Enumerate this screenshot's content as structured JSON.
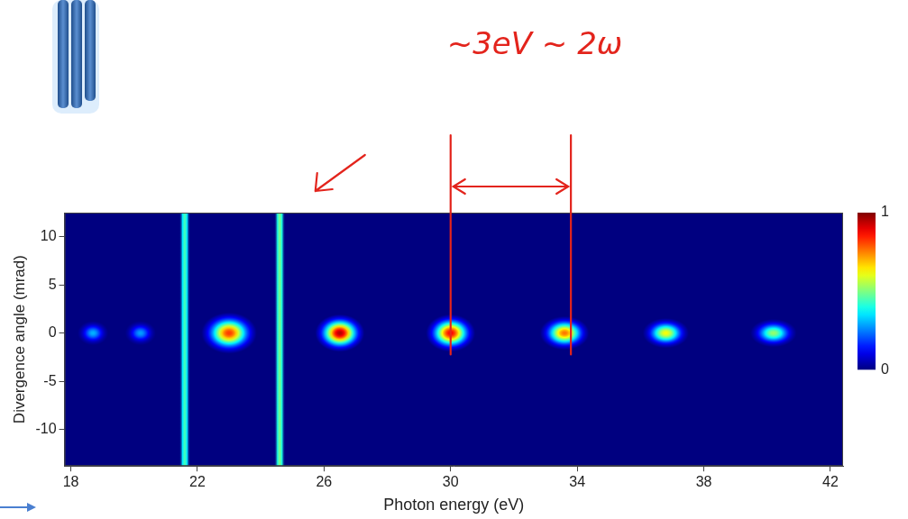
{
  "chart_data": {
    "type": "heatmap",
    "x_label": "Photon energy (eV)",
    "y_label": "Divergence angle (mrad)",
    "xlim": [
      17.8,
      42.4
    ],
    "xticks": [
      18,
      22,
      26,
      30,
      34,
      38,
      42
    ],
    "ylim": [
      -13.8,
      12.5
    ],
    "yticks": [
      -10,
      -5,
      0,
      5,
      10
    ],
    "grid": false,
    "spots": {
      "x": [
        18.7,
        20.2,
        23.0,
        26.5,
        30.0,
        33.6,
        36.8,
        40.2
      ],
      "y": [
        0,
        0,
        0,
        0,
        0,
        0,
        0,
        0
      ],
      "x_width": [
        0.5,
        0.5,
        0.9,
        0.8,
        0.8,
        0.8,
        0.75,
        0.75
      ],
      "y_width": [
        1.3,
        1.3,
        2.2,
        2.0,
        2.0,
        1.8,
        1.6,
        1.5
      ],
      "values": [
        0.3,
        0.28,
        0.82,
        0.95,
        0.88,
        0.76,
        0.62,
        0.52
      ]
    },
    "lines": {
      "x": [
        21.6,
        24.6
      ],
      "width": [
        0.35,
        0.35
      ],
      "values": [
        0.45,
        0.5
      ]
    },
    "colorbar": {
      "range": [
        0,
        1
      ],
      "ticks": [
        0,
        1
      ]
    },
    "annotations": [
      {
        "text": "~3eV ~ 2ω",
        "x": [
          30.0,
          33.8
        ]
      }
    ]
  }
}
